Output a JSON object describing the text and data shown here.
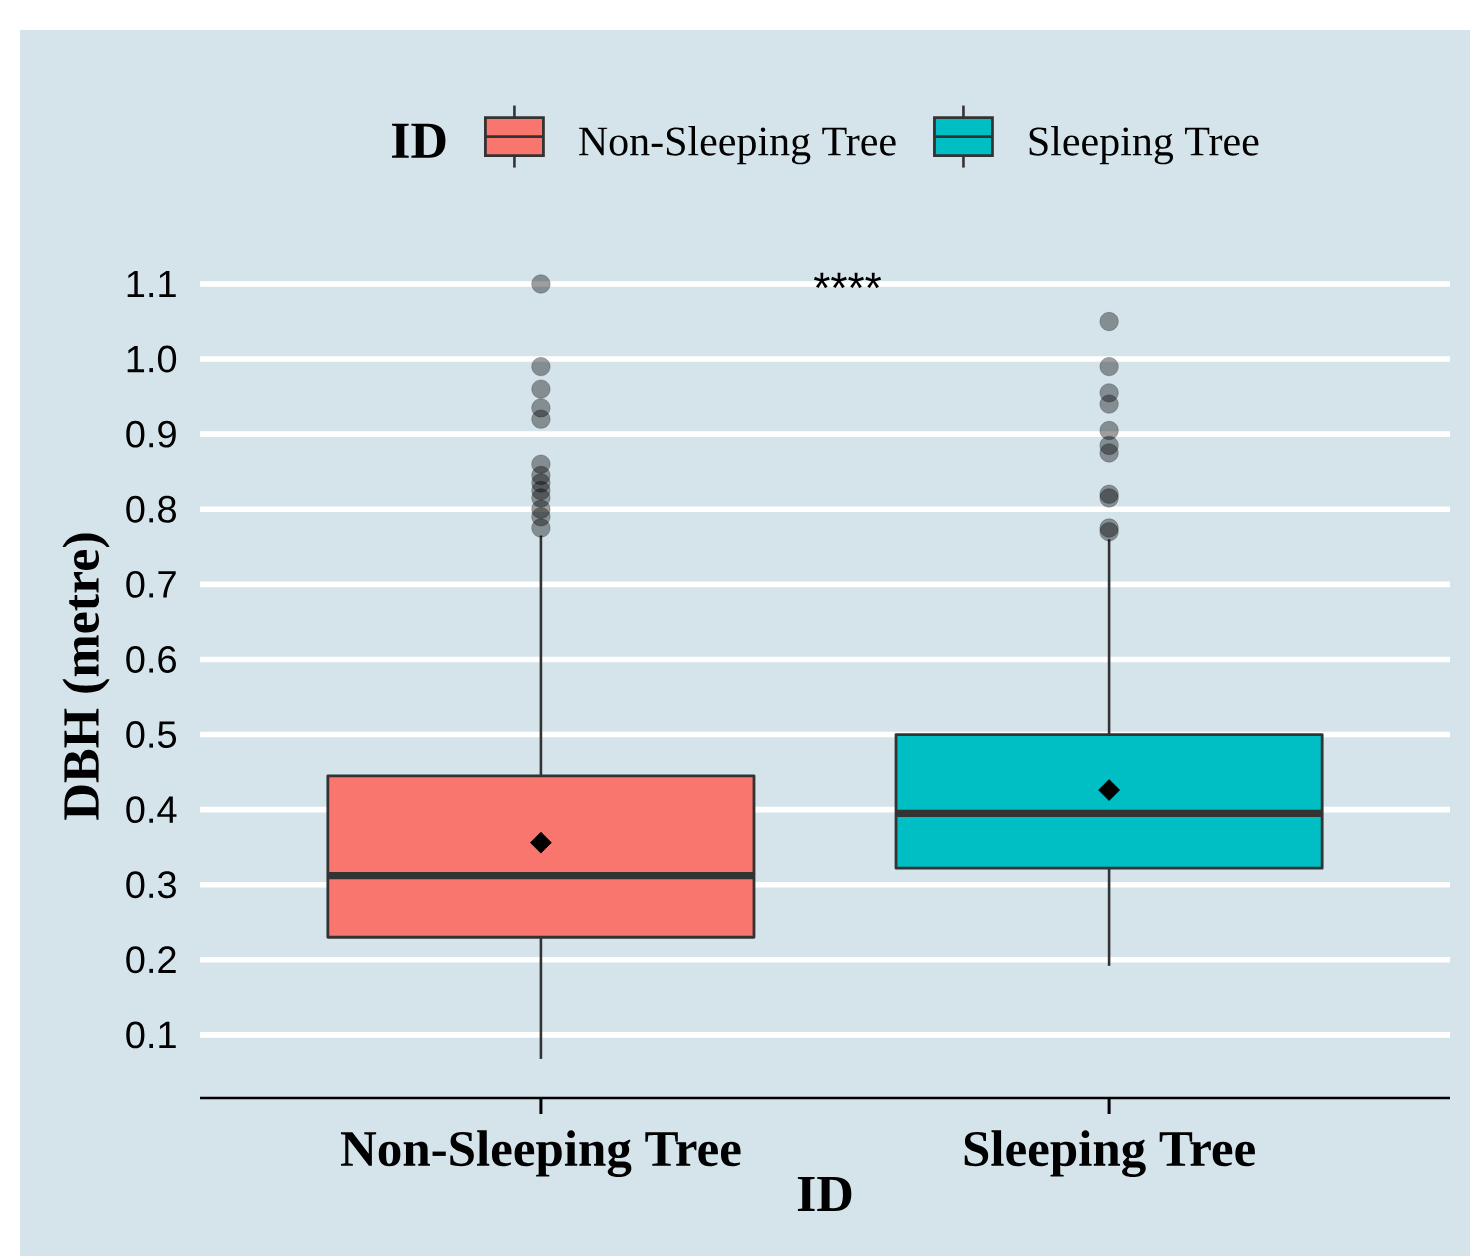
{
  "chart_data": {
    "type": "box",
    "categories": [
      "Non-Sleeping Tree",
      "Sleeping Tree"
    ],
    "series": [
      {
        "name": "Non-Sleeping Tree",
        "color": "#f8766d",
        "boxes": [
          {
            "low": 0.068,
            "q1": 0.23,
            "median": 0.312,
            "q3": 0.445,
            "high": 0.765,
            "mean": 0.356,
            "outliers": [
              1.1,
              0.99,
              0.96,
              0.935,
              0.92,
              0.86,
              0.845,
              0.835,
              0.825,
              0.815,
              0.8,
              0.79,
              0.775
            ]
          },
          null
        ]
      },
      {
        "name": "Sleeping Tree",
        "color": "#00bfc4",
        "boxes": [
          null,
          {
            "low": 0.192,
            "q1": 0.322,
            "median": 0.395,
            "q3": 0.5,
            "high": 0.76,
            "mean": 0.426,
            "outliers": [
              1.05,
              0.99,
              0.955,
              0.94,
              0.905,
              0.885,
              0.875,
              0.82,
              0.815,
              0.775,
              0.77
            ]
          }
        ]
      }
    ],
    "xlabel": "ID",
    "ylabel": "DBH (metre)",
    "legend_title": "ID",
    "legend": "top",
    "ylim": [
      0.016,
      1.1
    ],
    "yticks": [
      0.1,
      0.2,
      0.3,
      0.4,
      0.5,
      0.6,
      0.7,
      0.8,
      0.9,
      {
        "value": 1.0,
        "label": "1.0"
      },
      1.1
    ],
    "grid": "y",
    "annotations": [
      "****"
    ]
  }
}
